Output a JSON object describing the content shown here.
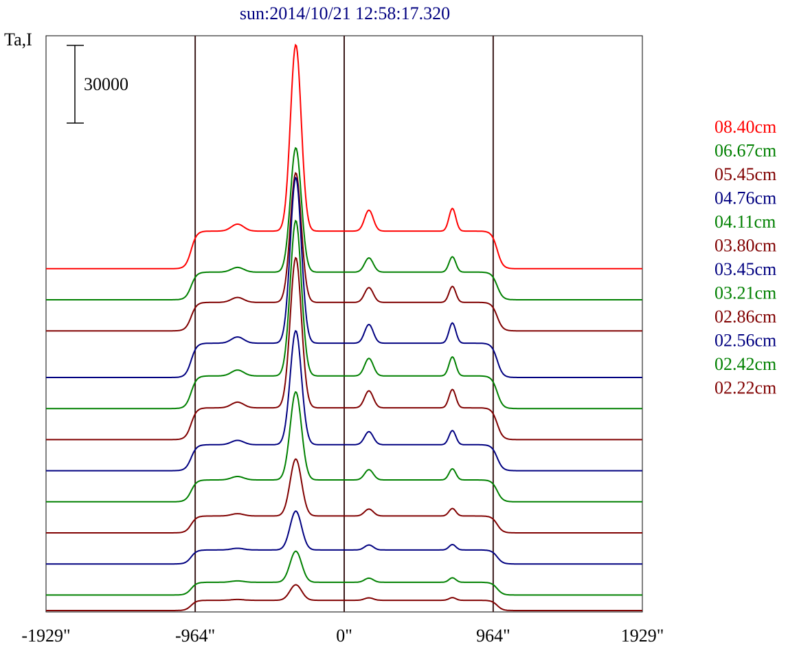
{
  "chart_data": {
    "type": "line",
    "title": "sun:2014/10/21 12:58:17.320",
    "ylabel": "Ta,I",
    "scale_bar_label": "30000",
    "x_tick_labels": [
      "-1929\"",
      "-964\"",
      "0\"",
      "964\"",
      "1929\""
    ],
    "x_tick_values": [
      -1929,
      -964,
      0,
      964,
      1929
    ],
    "xlim": [
      -1929,
      1929
    ],
    "vertical_lines": [
      -964,
      0,
      964
    ],
    "legend_position": "right",
    "series": [
      {
        "name": "08.40cm",
        "color": "#ff0000",
        "peak": 72000,
        "offset": 132000
      },
      {
        "name": "06.67cm",
        "color": "#008000",
        "peak": 48000,
        "offset": 120000
      },
      {
        "name": "05.45cm",
        "color": "#800000",
        "peak": 50000,
        "offset": 108000
      },
      {
        "name": "04.76cm",
        "color": "#000080",
        "peak": 64000,
        "offset": 90000
      },
      {
        "name": "04.11cm",
        "color": "#008000",
        "peak": 60000,
        "offset": 78000
      },
      {
        "name": "03.80cm",
        "color": "#800000",
        "peak": 58000,
        "offset": 66000
      },
      {
        "name": "03.45cm",
        "color": "#000080",
        "peak": 44000,
        "offset": 54000
      },
      {
        "name": "03.21cm",
        "color": "#008000",
        "peak": 34000,
        "offset": 42000
      },
      {
        "name": "02.86cm",
        "color": "#800000",
        "peak": 22000,
        "offset": 30000
      },
      {
        "name": "02.56cm",
        "color": "#000080",
        "peak": 15000,
        "offset": 18000
      },
      {
        "name": "02.42cm",
        "color": "#008000",
        "peak": 12000,
        "offset": 6000
      },
      {
        "name": "02.22cm",
        "color": "#800000",
        "peak": 6000,
        "offset": 0
      }
    ]
  },
  "colors": {
    "title": "#000080",
    "frame": "#000000",
    "vline": "#3a1a1a"
  }
}
